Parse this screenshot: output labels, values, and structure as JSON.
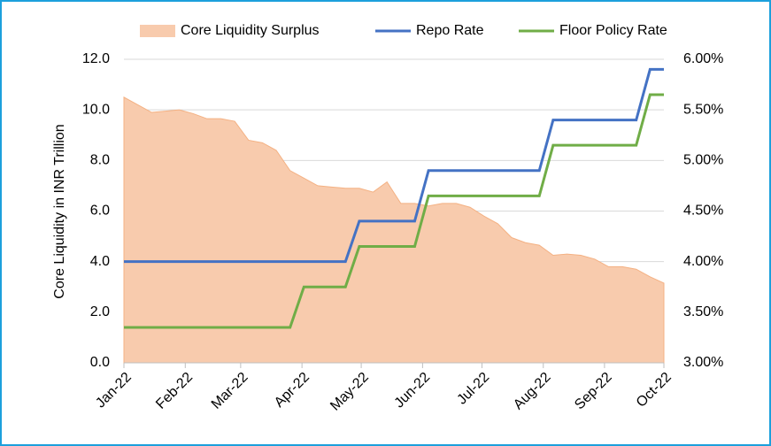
{
  "chart_data": {
    "type": "line",
    "ylabel": "Core Liquidity in INR Trillion",
    "x": [
      0,
      1,
      2,
      3,
      4,
      5,
      6,
      7,
      8,
      9,
      10,
      11,
      12,
      13,
      14,
      15,
      16,
      17,
      18,
      19,
      20,
      21,
      22,
      23,
      24,
      25,
      26,
      27,
      28,
      29,
      30,
      31,
      32,
      33,
      34,
      35,
      36,
      37,
      38,
      39
    ],
    "xlim": [
      0,
      39
    ],
    "xticks": [
      {
        "value": 0,
        "label": "Jan-22"
      },
      {
        "value": 4.43,
        "label": "Feb-22"
      },
      {
        "value": 8.43,
        "label": "Mar-22"
      },
      {
        "value": 12.86,
        "label": "Apr-22"
      },
      {
        "value": 17.14,
        "label": "May-22"
      },
      {
        "value": 21.57,
        "label": "Jun-22"
      },
      {
        "value": 25.86,
        "label": "Jul-22"
      },
      {
        "value": 30.29,
        "label": "Aug-22"
      },
      {
        "value": 34.71,
        "label": "Sep-22"
      },
      {
        "value": 39,
        "label": "Oct-22"
      }
    ],
    "ylim": [
      0,
      12
    ],
    "yticks": [
      {
        "value": 0,
        "label": "0.0"
      },
      {
        "value": 2,
        "label": "2.0"
      },
      {
        "value": 4,
        "label": "4.0"
      },
      {
        "value": 6,
        "label": "6.0"
      },
      {
        "value": 8,
        "label": "8.0"
      },
      {
        "value": 10,
        "label": "10.0"
      },
      {
        "value": 12,
        "label": "12.0"
      }
    ],
    "y2lim": [
      3,
      6
    ],
    "y2ticks": [
      {
        "value": 3,
        "label": "3.00%"
      },
      {
        "value": 3.5,
        "label": "3.50%"
      },
      {
        "value": 4,
        "label": "4.00%"
      },
      {
        "value": 4.5,
        "label": "4.50%"
      },
      {
        "value": 5,
        "label": "5.00%"
      },
      {
        "value": 5.5,
        "label": "5.50%"
      },
      {
        "value": 6,
        "label": "6.00%"
      }
    ],
    "grid": true,
    "legend": "top",
    "series": [
      {
        "name": "Core Liquidity Surplus",
        "type": "area",
        "color": "#f8cbad",
        "values": [
          10.5,
          10.2,
          9.9,
          9.95,
          10.0,
          9.85,
          9.65,
          9.65,
          9.55,
          8.8,
          8.7,
          8.4,
          7.6,
          7.3,
          7.0,
          6.95,
          6.9,
          6.9,
          6.75,
          7.15,
          6.3,
          6.3,
          6.2,
          6.3,
          6.3,
          6.15,
          5.8,
          5.5,
          4.95,
          4.75,
          4.65,
          4.25,
          4.3,
          4.25,
          4.1,
          3.8,
          3.8,
          3.7,
          3.4,
          3.15
        ]
      },
      {
        "name": "Repo Rate",
        "type": "line",
        "axis": "y2",
        "color": "#4472c4",
        "values": [
          4.0,
          4.0,
          4.0,
          4.0,
          4.0,
          4.0,
          4.0,
          4.0,
          4.0,
          4.0,
          4.0,
          4.0,
          4.0,
          4.0,
          4.0,
          4.0,
          4.0,
          4.4,
          4.4,
          4.4,
          4.4,
          4.4,
          4.9,
          4.9,
          4.9,
          4.9,
          4.9,
          4.9,
          4.9,
          4.9,
          4.9,
          5.4,
          5.4,
          5.4,
          5.4,
          5.4,
          5.4,
          5.4,
          5.9,
          5.9
        ]
      },
      {
        "name": "Floor Policy Rate",
        "type": "line",
        "axis": "y2",
        "color": "#70ad47",
        "values": [
          3.35,
          3.35,
          3.35,
          3.35,
          3.35,
          3.35,
          3.35,
          3.35,
          3.35,
          3.35,
          3.35,
          3.35,
          3.35,
          3.75,
          3.75,
          3.75,
          3.75,
          4.15,
          4.15,
          4.15,
          4.15,
          4.15,
          4.65,
          4.65,
          4.65,
          4.65,
          4.65,
          4.65,
          4.65,
          4.65,
          4.65,
          5.15,
          5.15,
          5.15,
          5.15,
          5.15,
          5.15,
          5.15,
          5.65,
          5.65
        ]
      }
    ]
  }
}
